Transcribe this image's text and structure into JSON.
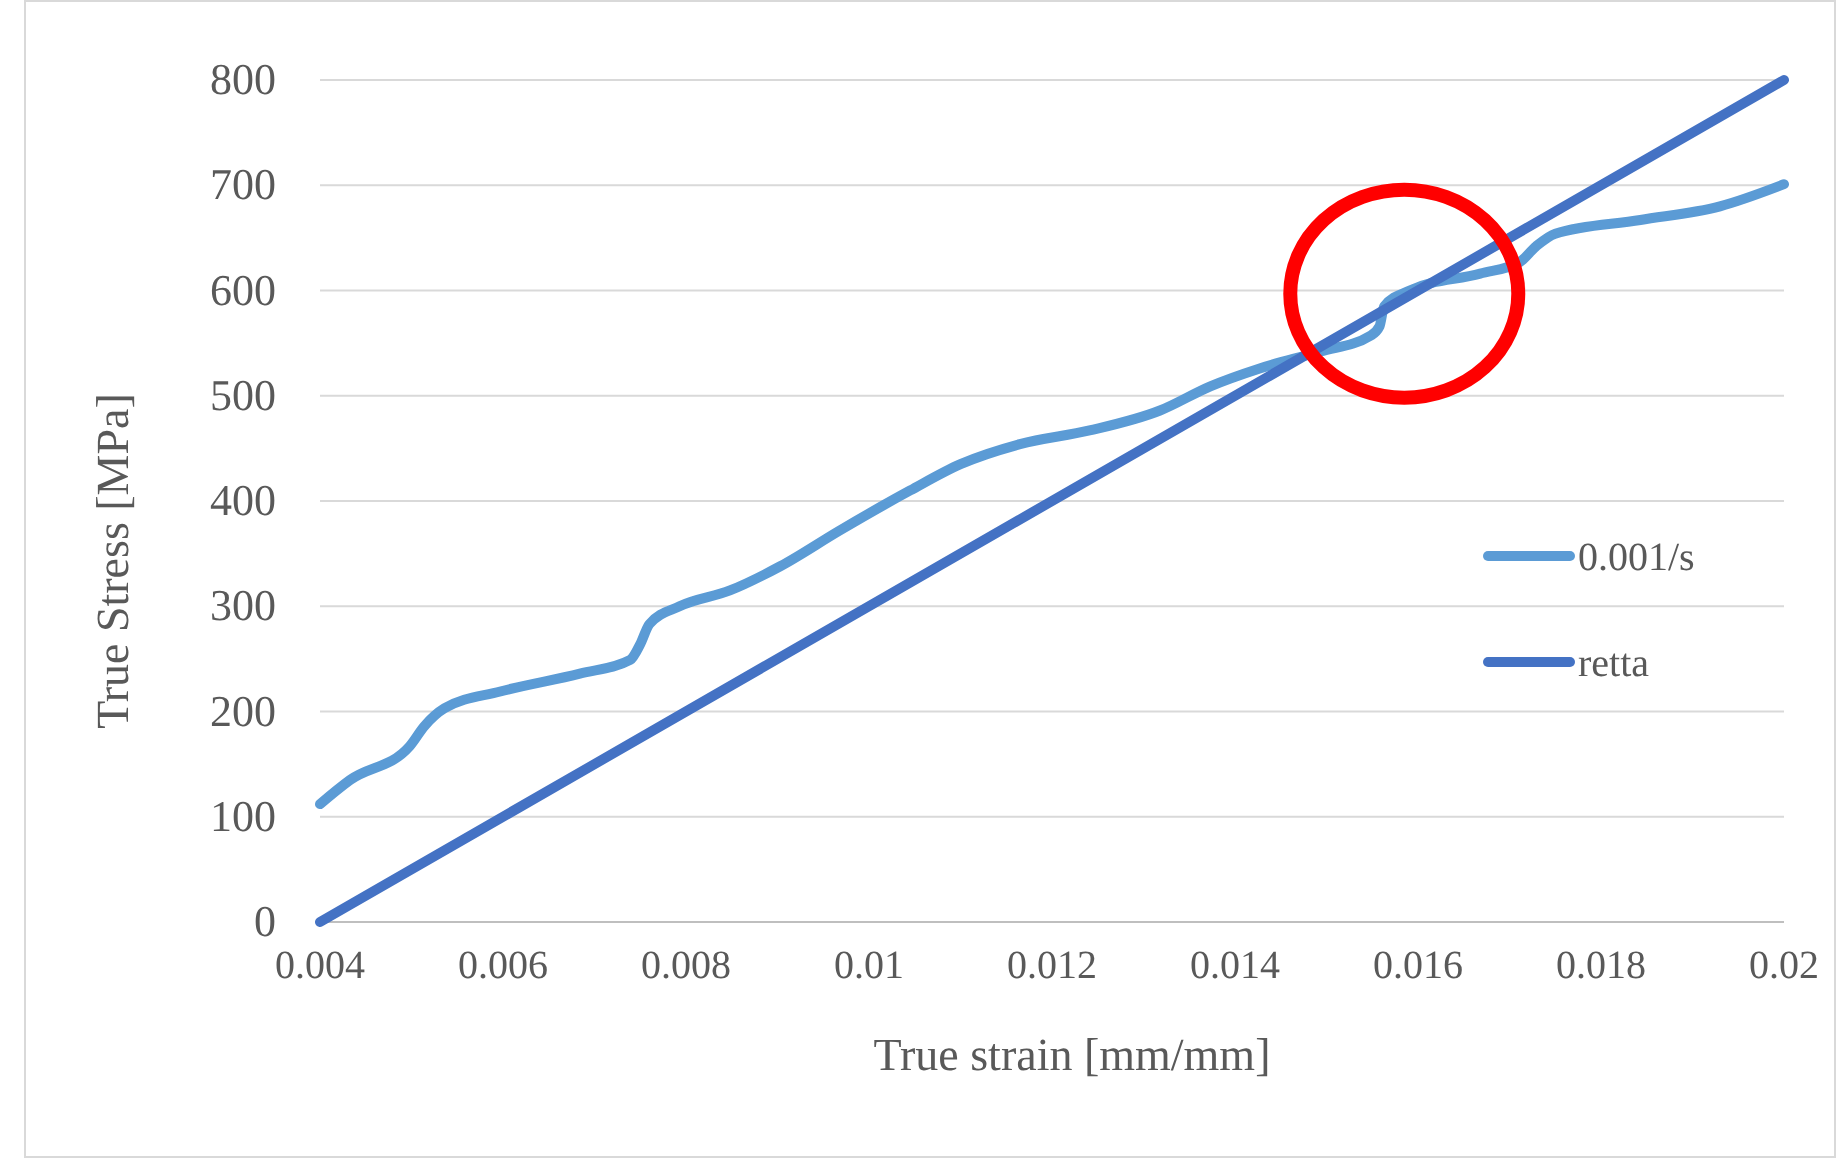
{
  "chart_data": {
    "type": "line",
    "xlabel": "True strain [mm/mm]",
    "ylabel": "True Stress [MPa]",
    "xlim": [
      0.004,
      0.02
    ],
    "xticks": [
      0.004,
      0.006,
      0.008,
      0.01,
      0.012,
      0.014,
      0.016,
      0.018,
      0.02
    ],
    "ylim": [
      0,
      800
    ],
    "yticks": [
      0,
      100,
      200,
      300,
      400,
      500,
      600,
      700,
      800
    ],
    "grid": "y",
    "legend": "right",
    "marker": "none",
    "line_style": "solid",
    "series": [
      {
        "name": "0.001/s",
        "color": "#5b9bd5",
        "x": [
          0.004,
          0.00433,
          0.00498,
          0.00514,
          0.00536,
          0.00597,
          0.00684,
          0.00739,
          0.0075,
          0.0076,
          0.00793,
          0.00848,
          0.00903,
          0.00968,
          0.01045,
          0.011,
          0.01165,
          0.01241,
          0.01318,
          0.01373,
          0.01427,
          0.01493,
          0.01548,
          0.01558,
          0.01563,
          0.01591,
          0.01668,
          0.01711,
          0.01729,
          0.0175,
          0.01843,
          0.0193,
          0.02
        ],
        "values": [
          112,
          135,
          167,
          186,
          203,
          219,
          236,
          249,
          264,
          283,
          300,
          315,
          338,
          372,
          410,
          435,
          454,
          467,
          486,
          509,
          526,
          542,
          557,
          566,
          585,
          600,
          616,
          627,
          642,
          654,
          667,
          680,
          701
        ]
      },
      {
        "name": "retta",
        "color": "#4472c4",
        "x": [
          0.004,
          0.02
        ],
        "values": [
          0,
          800
        ]
      }
    ]
  }
}
